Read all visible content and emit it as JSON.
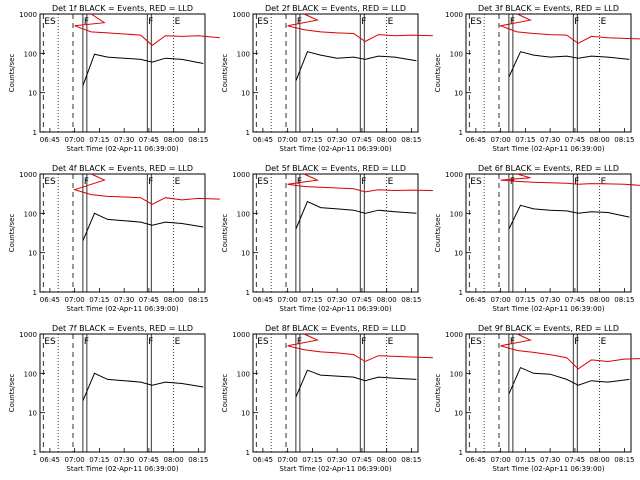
{
  "chart_data": {
    "type": "line",
    "x_unit": "time",
    "x_ticks": [
      "06:45",
      "07:00",
      "07:15",
      "07:30",
      "07:45",
      "08:00",
      "08:15"
    ],
    "y_ticks": [
      "1",
      "10",
      "100",
      "1000"
    ],
    "ylabel": "Counts/sec",
    "xlabel": "Start Time (02-Apr-11 06:39:00)",
    "y_scale": "log",
    "ylim": [
      1,
      1000
    ],
    "xlim": [
      "06:39",
      "08:19"
    ],
    "series_colors": {
      "events": "#000000",
      "lld": "#dd0000"
    },
    "markers": [
      {
        "label": "ES",
        "time": "06:41",
        "style": "dashed"
      },
      {
        "label": "",
        "time": "06:50",
        "style": "dotted"
      },
      {
        "label": "",
        "time": "06:59",
        "style": "dashed"
      },
      {
        "label": "F",
        "time": "07:05",
        "style": "solid-pair"
      },
      {
        "label": "F",
        "time": "07:44",
        "style": "solid-pair"
      },
      {
        "label": "E",
        "time": "08:00",
        "style": "dotted"
      }
    ],
    "panels": [
      {
        "title": "Det 1f BLACK = Events, RED = LLD",
        "events": [
          [
            7.05,
            15
          ],
          [
            7.12,
            95
          ],
          [
            7.2,
            80
          ],
          [
            7.3,
            75
          ],
          [
            7.4,
            70
          ],
          [
            7.47,
            60
          ],
          [
            7.55,
            75
          ],
          [
            7.65,
            70
          ],
          [
            7.78,
            55
          ]
        ],
        "lld": [
          [
            6.7,
            1000
          ],
          [
            6.78,
            600
          ],
          [
            7.0,
            500
          ],
          [
            7.1,
            350
          ],
          [
            7.2,
            330
          ],
          [
            7.3,
            310
          ],
          [
            7.4,
            290
          ],
          [
            7.47,
            160
          ],
          [
            7.55,
            280
          ],
          [
            7.65,
            270
          ],
          [
            7.75,
            280
          ],
          [
            7.88,
            250
          ]
        ]
      },
      {
        "title": "Det 2f BLACK = Events, RED = LLD",
        "events": [
          [
            7.05,
            20
          ],
          [
            7.12,
            110
          ],
          [
            7.2,
            90
          ],
          [
            7.3,
            75
          ],
          [
            7.4,
            80
          ],
          [
            7.47,
            70
          ],
          [
            7.55,
            85
          ],
          [
            7.65,
            80
          ],
          [
            7.78,
            65
          ]
        ],
        "lld": [
          [
            6.7,
            1000
          ],
          [
            6.78,
            700
          ],
          [
            7.0,
            500
          ],
          [
            7.1,
            400
          ],
          [
            7.2,
            350
          ],
          [
            7.3,
            330
          ],
          [
            7.4,
            320
          ],
          [
            7.47,
            200
          ],
          [
            7.55,
            300
          ],
          [
            7.65,
            280
          ],
          [
            7.75,
            290
          ],
          [
            7.88,
            280
          ]
        ]
      },
      {
        "title": "Det 3f BLACK = Events, RED = LLD",
        "events": [
          [
            7.05,
            25
          ],
          [
            7.12,
            110
          ],
          [
            7.2,
            90
          ],
          [
            7.3,
            80
          ],
          [
            7.4,
            85
          ],
          [
            7.47,
            75
          ],
          [
            7.55,
            85
          ],
          [
            7.65,
            80
          ],
          [
            7.78,
            70
          ]
        ],
        "lld": [
          [
            6.7,
            1000
          ],
          [
            6.78,
            700
          ],
          [
            7.0,
            500
          ],
          [
            7.1,
            350
          ],
          [
            7.2,
            320
          ],
          [
            7.3,
            300
          ],
          [
            7.4,
            290
          ],
          [
            7.47,
            180
          ],
          [
            7.55,
            270
          ],
          [
            7.65,
            250
          ],
          [
            7.75,
            240
          ],
          [
            7.88,
            230
          ]
        ]
      },
      {
        "title": "Det 4f BLACK = Events, RED = LLD",
        "events": [
          [
            7.05,
            20
          ],
          [
            7.12,
            100
          ],
          [
            7.2,
            70
          ],
          [
            7.3,
            65
          ],
          [
            7.4,
            60
          ],
          [
            7.47,
            50
          ],
          [
            7.55,
            60
          ],
          [
            7.65,
            55
          ],
          [
            7.78,
            45
          ]
        ],
        "lld": [
          [
            6.7,
            1000
          ],
          [
            6.78,
            700
          ],
          [
            7.0,
            400
          ],
          [
            7.1,
            300
          ],
          [
            7.2,
            270
          ],
          [
            7.3,
            260
          ],
          [
            7.4,
            250
          ],
          [
            7.47,
            170
          ],
          [
            7.55,
            250
          ],
          [
            7.65,
            220
          ],
          [
            7.75,
            240
          ],
          [
            7.88,
            230
          ]
        ]
      },
      {
        "title": "Det 5f BLACK = Events, RED = LLD",
        "events": [
          [
            7.05,
            40
          ],
          [
            7.12,
            200
          ],
          [
            7.2,
            140
          ],
          [
            7.3,
            130
          ],
          [
            7.4,
            120
          ],
          [
            7.47,
            100
          ],
          [
            7.55,
            120
          ],
          [
            7.65,
            110
          ],
          [
            7.78,
            100
          ]
        ],
        "lld": [
          [
            6.7,
            1000
          ],
          [
            6.78,
            700
          ],
          [
            7.0,
            550
          ],
          [
            7.1,
            480
          ],
          [
            7.2,
            460
          ],
          [
            7.3,
            440
          ],
          [
            7.4,
            420
          ],
          [
            7.47,
            350
          ],
          [
            7.55,
            400
          ],
          [
            7.65,
            380
          ],
          [
            7.75,
            390
          ],
          [
            7.88,
            380
          ]
        ]
      },
      {
        "title": "Det 6f BLACK = Events, RED = LLD",
        "events": [
          [
            7.05,
            40
          ],
          [
            7.12,
            160
          ],
          [
            7.2,
            130
          ],
          [
            7.3,
            120
          ],
          [
            7.4,
            115
          ],
          [
            7.47,
            100
          ],
          [
            7.55,
            110
          ],
          [
            7.65,
            105
          ],
          [
            7.78,
            80
          ]
        ],
        "lld": [
          [
            6.7,
            1000
          ],
          [
            6.78,
            800
          ],
          [
            7.0,
            700
          ],
          [
            7.1,
            650
          ],
          [
            7.2,
            620
          ],
          [
            7.3,
            600
          ],
          [
            7.4,
            580
          ],
          [
            7.47,
            550
          ],
          [
            7.55,
            570
          ],
          [
            7.65,
            560
          ],
          [
            7.75,
            550
          ],
          [
            7.88,
            500
          ]
        ]
      },
      {
        "title": "Det 7f BLACK = Events, RED = LLD",
        "events": [
          [
            7.05,
            20
          ],
          [
            7.12,
            100
          ],
          [
            7.2,
            70
          ],
          [
            7.3,
            65
          ],
          [
            7.4,
            60
          ],
          [
            7.47,
            50
          ],
          [
            7.55,
            60
          ],
          [
            7.65,
            55
          ],
          [
            7.78,
            45
          ]
        ],
        "lld": []
      },
      {
        "title": "Det 8f BLACK = Events, RED = LLD",
        "events": [
          [
            7.05,
            25
          ],
          [
            7.12,
            120
          ],
          [
            7.2,
            90
          ],
          [
            7.3,
            85
          ],
          [
            7.4,
            80
          ],
          [
            7.47,
            65
          ],
          [
            7.55,
            80
          ],
          [
            7.65,
            75
          ],
          [
            7.78,
            70
          ]
        ],
        "lld": [
          [
            6.7,
            1000
          ],
          [
            6.78,
            700
          ],
          [
            7.0,
            500
          ],
          [
            7.1,
            400
          ],
          [
            7.2,
            350
          ],
          [
            7.3,
            330
          ],
          [
            7.4,
            300
          ],
          [
            7.47,
            200
          ],
          [
            7.55,
            280
          ],
          [
            7.65,
            270
          ],
          [
            7.75,
            260
          ],
          [
            7.88,
            250
          ]
        ]
      },
      {
        "title": "Det 9f BLACK = Events, RED = LLD",
        "events": [
          [
            7.05,
            30
          ],
          [
            7.12,
            140
          ],
          [
            7.2,
            100
          ],
          [
            7.3,
            95
          ],
          [
            7.4,
            70
          ],
          [
            7.47,
            50
          ],
          [
            7.55,
            65
          ],
          [
            7.65,
            60
          ],
          [
            7.78,
            70
          ]
        ],
        "lld": [
          [
            6.7,
            1000
          ],
          [
            6.78,
            700
          ],
          [
            7.0,
            500
          ],
          [
            7.1,
            380
          ],
          [
            7.2,
            340
          ],
          [
            7.3,
            300
          ],
          [
            7.4,
            250
          ],
          [
            7.47,
            130
          ],
          [
            7.55,
            220
          ],
          [
            7.65,
            200
          ],
          [
            7.75,
            230
          ],
          [
            7.88,
            240
          ]
        ]
      }
    ]
  }
}
